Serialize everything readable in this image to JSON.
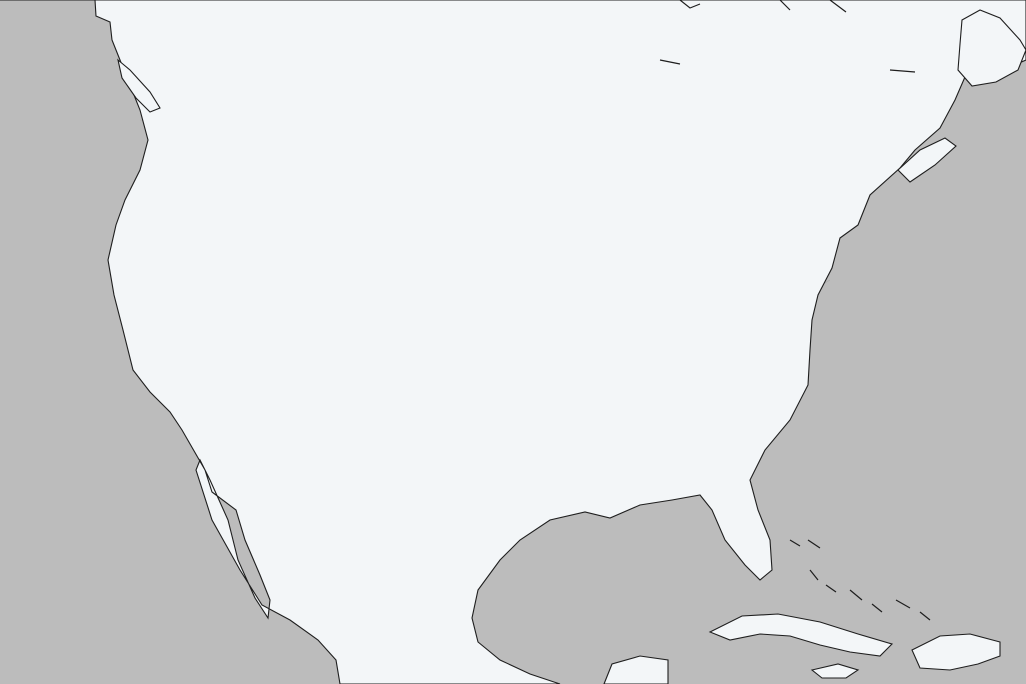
{
  "map": {
    "projection": "conic",
    "region": "North America",
    "colors": {
      "ocean": "#bcbcbc",
      "coastline": "#1e1e1e",
      "border": "#a8a8a8",
      "lake": "#bcbcbc",
      "neutral": "#f3f6f8",
      "warm_light": "#f6cdb8",
      "warm_mid": "#eb9270",
      "warm_strong": "#d5533a",
      "warm_max": "#b8301e",
      "cool_light": "#d6e6f3",
      "cool_mid": "#94bde0",
      "cool_strong": "#4f8fc9",
      "cool_max": "#2f6eae"
    },
    "legend": null
  }
}
